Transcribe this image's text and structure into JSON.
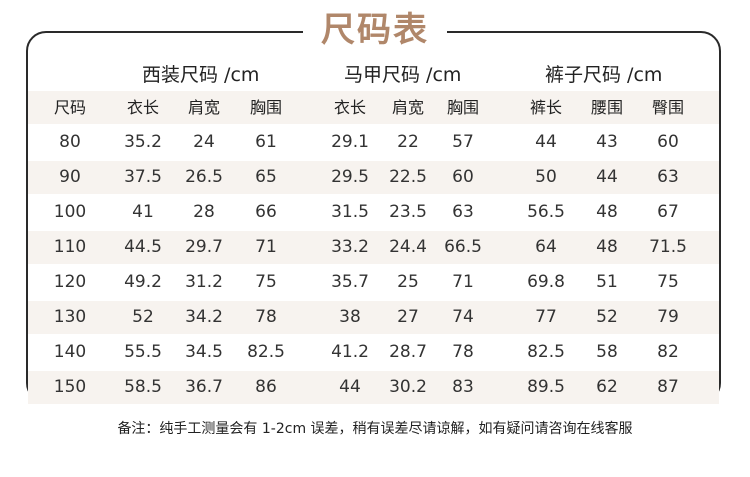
{
  "title": "尺码表",
  "groups": {
    "suit": "西装尺码 /cm",
    "vest": "马甲尺码 /cm",
    "pants": "裤子尺码 /cm"
  },
  "columns": [
    "尺码",
    "衣长",
    "肩宽",
    "胸围",
    "衣长",
    "肩宽",
    "胸围",
    "裤长",
    "腰围",
    "臀围"
  ],
  "rows": [
    [
      "80",
      "35.2",
      "24",
      "61",
      "29.1",
      "22",
      "57",
      "44",
      "43",
      "60"
    ],
    [
      "90",
      "37.5",
      "26.5",
      "65",
      "29.5",
      "22.5",
      "60",
      "50",
      "44",
      "63"
    ],
    [
      "100",
      "41",
      "28",
      "66",
      "31.5",
      "23.5",
      "63",
      "56.5",
      "48",
      "67"
    ],
    [
      "110",
      "44.5",
      "29.7",
      "71",
      "33.2",
      "24.4",
      "66.5",
      "64",
      "48",
      "71.5"
    ],
    [
      "120",
      "49.2",
      "31.2",
      "75",
      "35.7",
      "25",
      "71",
      "69.8",
      "51",
      "75"
    ],
    [
      "130",
      "52",
      "34.2",
      "78",
      "38",
      "27",
      "74",
      "77",
      "52",
      "79"
    ],
    [
      "140",
      "55.5",
      "34.5",
      "82.5",
      "41.2",
      "28.7",
      "78",
      "82.5",
      "58",
      "82"
    ],
    [
      "150",
      "58.5",
      "36.7",
      "86",
      "44",
      "30.2",
      "83",
      "89.5",
      "62",
      "87"
    ]
  ],
  "note": "备注：纯手工测量会有 1-2cm 误差，稍有误差尽请谅解，如有疑问请咨询在线客服",
  "colors": {
    "accent": "#b0876a",
    "stripe": "#f7f3ef",
    "border": "#2a2a2a"
  }
}
